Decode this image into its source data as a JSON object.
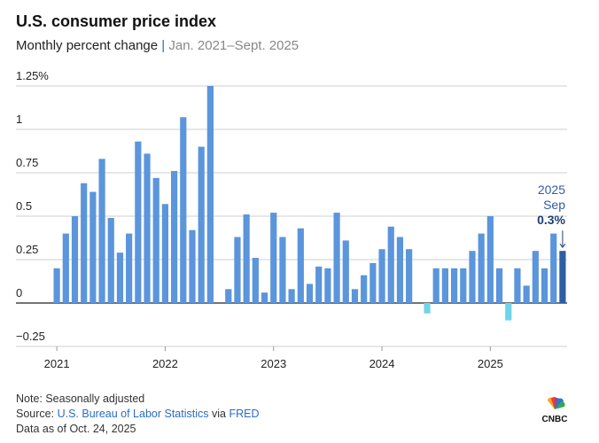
{
  "chart_data": {
    "type": "bar",
    "title": "U.S. consumer price index",
    "subtitle": "Monthly percent change",
    "subtitle_range": "Jan. 2021–Sept. 2025",
    "categories": [
      "2021",
      null,
      null,
      null,
      null,
      null,
      null,
      null,
      null,
      null,
      null,
      null,
      "2022",
      null,
      null,
      null,
      null,
      null,
      null,
      null,
      null,
      null,
      null,
      null,
      "2023",
      null,
      null,
      null,
      null,
      null,
      null,
      null,
      null,
      null,
      null,
      null,
      "2024",
      null,
      null,
      null,
      null,
      null,
      null,
      null,
      null,
      null,
      null,
      null,
      "2025",
      null,
      null,
      null,
      null,
      null,
      null,
      null,
      null
    ],
    "values": [
      0.2,
      0.4,
      0.5,
      0.69,
      0.64,
      0.83,
      0.49,
      0.29,
      0.4,
      0.93,
      0.86,
      0.72,
      0.57,
      0.76,
      1.07,
      0.42,
      0.9,
      1.25,
      0,
      0.08,
      0.38,
      0.51,
      0.26,
      0.06,
      0.52,
      0.38,
      0.08,
      0.43,
      0.11,
      0.21,
      0.2,
      0.52,
      0.36,
      0.08,
      0.16,
      0.23,
      0.31,
      0.44,
      0.38,
      0.31,
      0,
      -0.06,
      0.2,
      0.2,
      0.2,
      0.2,
      0.3,
      0.4,
      0.5,
      0.2,
      -0.1,
      0.2,
      0.1,
      0.3,
      0.2,
      0.4,
      0.3
    ],
    "value_labels": [
      null,
      null,
      null,
      null,
      null,
      null,
      null,
      null,
      null,
      null,
      null,
      null,
      null,
      null,
      null,
      null,
      null,
      null,
      null,
      null,
      null,
      null,
      null,
      null,
      null,
      null,
      null,
      null,
      null,
      null,
      null,
      null,
      null,
      null,
      null,
      null,
      null,
      null,
      null,
      null,
      null,
      null,
      null,
      null,
      null,
      null,
      null,
      null,
      null,
      null,
      null,
      null,
      null,
      null,
      null,
      null,
      "0.3%"
    ],
    "annotation": [
      "2025",
      "Sep"
    ],
    "color": "#5b95dc",
    "negative_color": "#6fd4ea",
    "highlight_color": "#2c5ea3",
    "ylim": [
      -0.25,
      1.25
    ],
    "yticks": [
      {
        "value": 1.25,
        "label": "1.25%"
      },
      1,
      0.75,
      0.5,
      0.25,
      0,
      {
        "value": -0.25,
        "label": "−0.25"
      }
    ],
    "grid": true,
    "note": "Note: Seasonally adjusted",
    "source": {
      "prefix": "Source:",
      "org": "U.S. Bureau of Labor Statistics",
      "via": "via",
      "site": "FRED"
    },
    "data_date": "Data as of Oct. 24, 2025",
    "logo": "CNBC"
  }
}
